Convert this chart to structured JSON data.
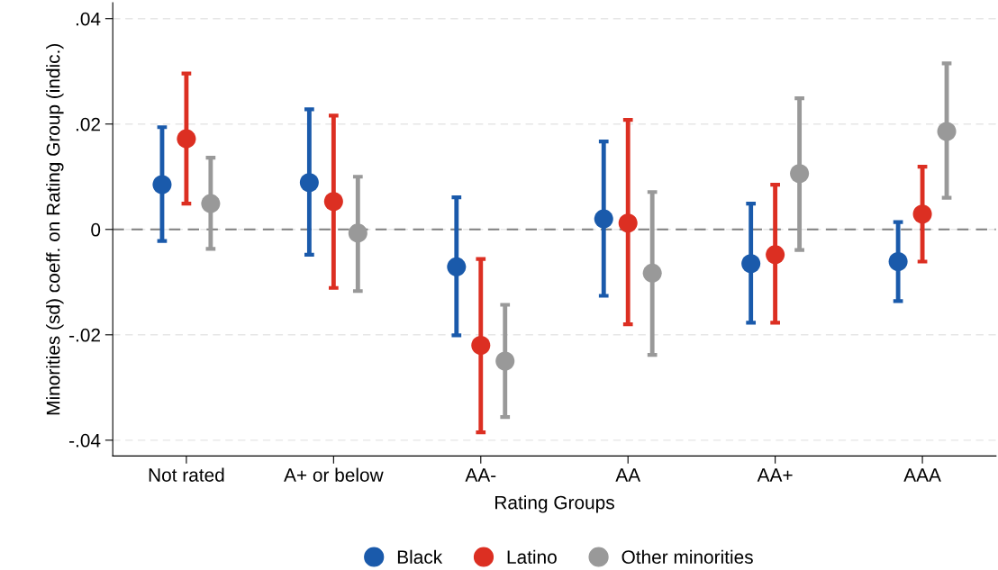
{
  "chart_data": {
    "type": "scatter",
    "xlabel": "Rating Groups",
    "ylabel": "Minorities (sd) coeff. on Rating Group (indic.)",
    "categories": [
      "Not rated",
      "A+ or below",
      "AA-",
      "AA",
      "AA+",
      "AAA"
    ],
    "series": [
      {
        "name": "Black",
        "color": "#1a5aab",
        "values": [
          0.0085,
          0.0089,
          -0.0071,
          0.002,
          -0.0065,
          -0.0061
        ],
        "errors": [
          [
            -0.0022,
            0.0194
          ],
          [
            -0.0048,
            0.0228
          ],
          [
            -0.0201,
            0.0061
          ],
          [
            -0.0126,
            0.0167
          ],
          [
            -0.0177,
            0.0049
          ],
          [
            -0.0136,
            0.0014
          ]
        ]
      },
      {
        "name": "Latino",
        "color": "#dc2f22",
        "values": [
          0.0172,
          0.0053,
          -0.022,
          0.0012,
          -0.0048,
          0.0029
        ],
        "errors": [
          [
            0.0049,
            0.0296
          ],
          [
            -0.0111,
            0.0216
          ],
          [
            -0.0385,
            -0.0056
          ],
          [
            -0.018,
            0.0208
          ],
          [
            -0.0177,
            0.0085
          ],
          [
            -0.0061,
            0.0119
          ]
        ]
      },
      {
        "name": "Other minorities",
        "color": "#999999",
        "values": [
          0.0049,
          -0.0007,
          -0.025,
          -0.0083,
          0.0106,
          0.0186
        ],
        "errors": [
          [
            -0.0037,
            0.0136
          ],
          [
            -0.0117,
            0.01
          ],
          [
            -0.0356,
            -0.0143
          ],
          [
            -0.0238,
            0.0071
          ],
          [
            -0.0039,
            0.0249
          ],
          [
            0.006,
            0.0315
          ]
        ]
      }
    ],
    "ylim": [
      -0.043,
      0.043
    ],
    "yticks": [
      {
        "value": -0.04,
        "label": "-.04"
      },
      {
        "value": -0.02,
        "label": "-.02"
      },
      0,
      {
        "value": 0.02,
        "label": ".02"
      },
      {
        "value": 0.04,
        "label": ".04"
      }
    ],
    "ref_lines": [
      {
        "axis": "y",
        "value": 0,
        "color": "#808080",
        "line_style": "dashed"
      }
    ],
    "grid": "y",
    "legend": "bottom",
    "marker": "circle"
  }
}
